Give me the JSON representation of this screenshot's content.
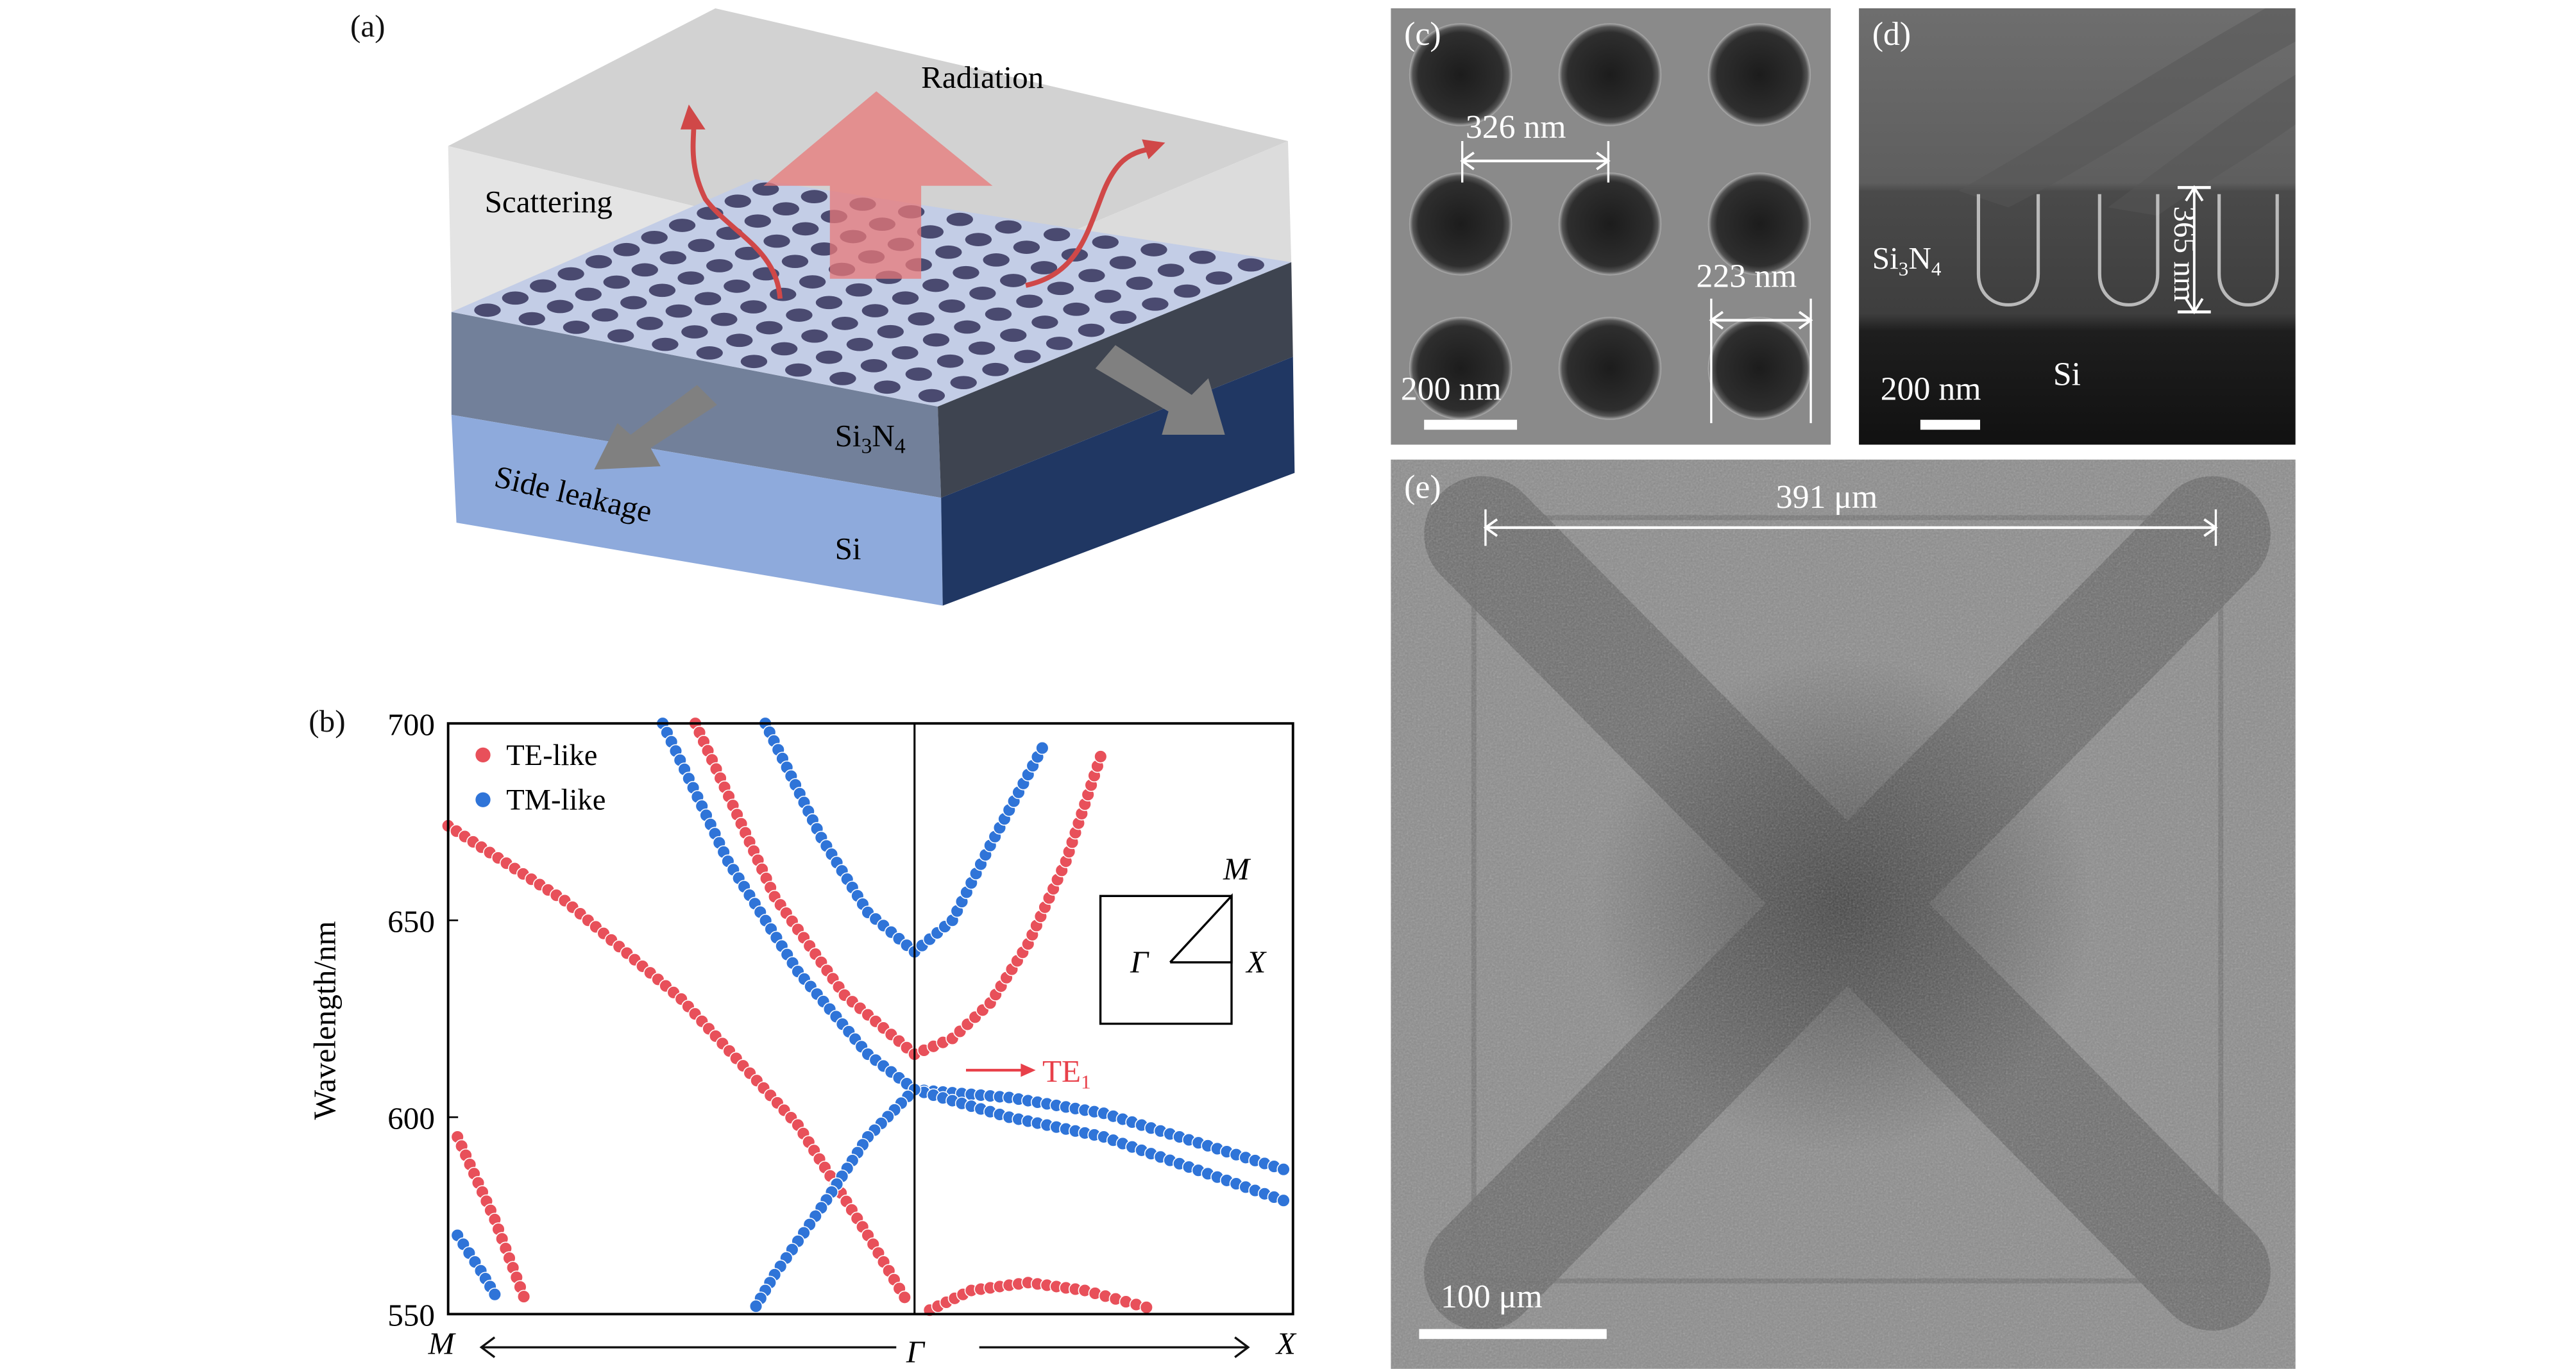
{
  "panel_a": {
    "label": "(a)",
    "radiation": "Radiation",
    "scattering": "Scattering",
    "si3n4": "Si3N4",
    "side_leakage": "Side leakage",
    "si": "Si",
    "colors": {
      "si3n4_top": "#c3cde6",
      "holes": "#4a4a70",
      "si3n4_side": "#72809a",
      "si3n4_right": "#3e4450",
      "si_side": "#8eaadc",
      "si_right": "#203763",
      "radiation_arrow": "#e87878",
      "leakage_arrow": "#808080"
    }
  },
  "panel_b": {
    "label": "(b)",
    "chart_data": {
      "type": "scatter",
      "title": "",
      "ylabel": "Wavelength/nm",
      "xlabel": "",
      "ylim": [
        550,
        700
      ],
      "yticks": [
        "700",
        "650",
        "600",
        "550"
      ],
      "xlim": [
        -1,
        1
      ],
      "x_points": {
        "left": "M",
        "center": "Γ",
        "right": "X"
      },
      "legend": {
        "position": "top-left",
        "entries": [
          "TE-like",
          "TM-like"
        ]
      },
      "series": [
        {
          "name": "TE-like",
          "color": "#e8505a",
          "bands": [
            [
              [
                -1,
                674
              ],
              [
                -0.75,
                655
              ],
              [
                -0.5,
                630
              ],
              [
                -0.25,
                598
              ],
              [
                -0.1,
                570
              ],
              [
                -0.01,
                552
              ]
            ],
            [
              [
                -0.47,
                700
              ],
              [
                -0.3,
                656
              ],
              [
                -0.15,
                631
              ],
              [
                0,
                616
              ],
              [
                0.1,
                620
              ],
              [
                0.2,
                629
              ],
              [
                0.3,
                644
              ],
              [
                0.4,
                665
              ],
              [
                0.5,
                694
              ]
            ],
            [
              [
                -0.98,
                595
              ],
              [
                -0.9,
                574
              ],
              [
                -0.83,
                552
              ]
            ],
            [
              [
                0.04,
                551
              ],
              [
                0.15,
                556
              ],
              [
                0.3,
                558
              ],
              [
                0.45,
                556
              ],
              [
                0.64,
                551
              ]
            ]
          ]
        },
        {
          "name": "TM-like",
          "color": "#2f74d8",
          "bands": [
            [
              [
                -0.54,
                700
              ],
              [
                -0.4,
                665
              ],
              [
                -0.25,
                637
              ],
              [
                -0.1,
                616
              ],
              [
                0,
                607
              ],
              [
                0.25,
                605
              ],
              [
                0.5,
                601
              ],
              [
                1,
                586
              ]
            ],
            [
              [
                0,
                607
              ],
              [
                0.25,
                600
              ],
              [
                0.5,
                595
              ],
              [
                1,
                578
              ]
            ],
            [
              [
                0,
                607
              ],
              [
                -0.1,
                595
              ],
              [
                -0.2,
                577
              ],
              [
                -0.3,
                560
              ],
              [
                -0.35,
                550
              ]
            ],
            [
              [
                -0.32,
                700
              ],
              [
                -0.2,
                671
              ],
              [
                -0.1,
                652
              ],
              [
                0,
                642
              ],
              [
                0.1,
                650
              ],
              [
                0.2,
                669
              ],
              [
                0.35,
                696
              ]
            ],
            [
              [
                -0.98,
                570
              ],
              [
                -0.93,
                561
              ],
              [
                -0.89,
                553
              ]
            ]
          ]
        }
      ],
      "annotation": "TE1",
      "inset": {
        "M": "M",
        "Gamma": "Γ",
        "X": "X"
      }
    }
  },
  "panel_c": {
    "label": "(c)",
    "period": "326 nm",
    "diameter": "223 nm",
    "scale": "200 nm"
  },
  "panel_d": {
    "label": "(d)",
    "si3n4": "Si3N4",
    "depth": "365 nm",
    "scale": "200 nm",
    "si": "Si"
  },
  "panel_e": {
    "label": "(e)",
    "size": "391 μm",
    "scale": "100 μm"
  }
}
